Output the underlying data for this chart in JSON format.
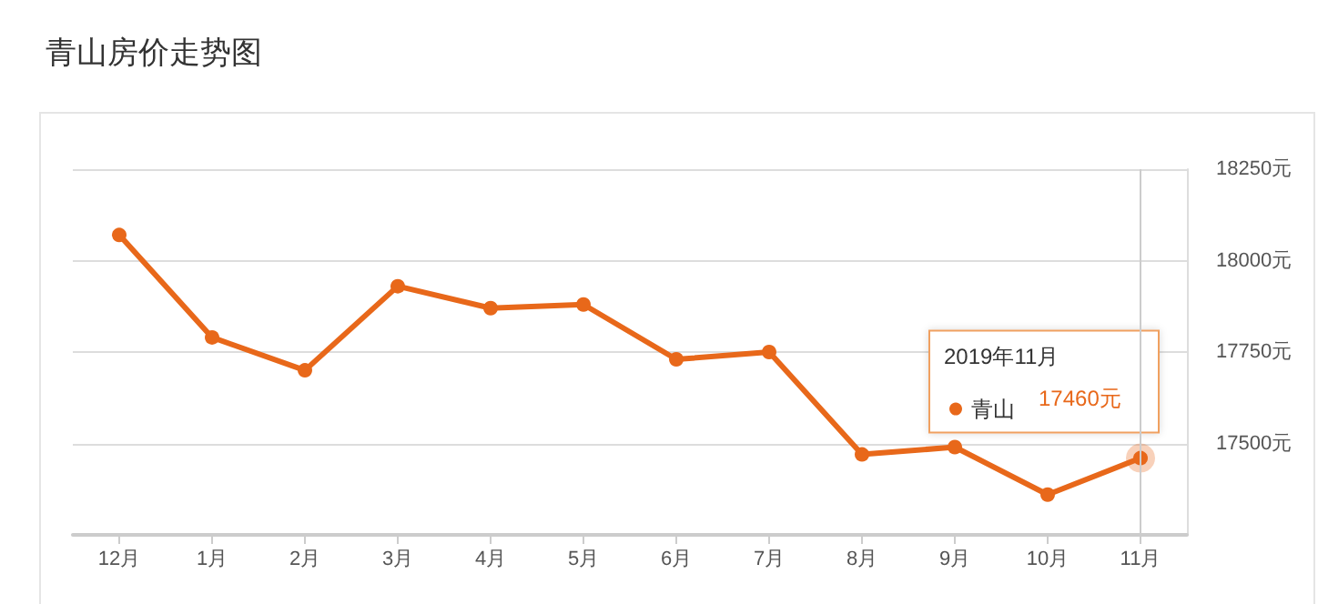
{
  "chart_data": {
    "type": "line",
    "title": "青山房价走势图",
    "categories": [
      "12月",
      "1月",
      "2月",
      "3月",
      "4月",
      "5月",
      "6月",
      "7月",
      "8月",
      "9月",
      "10月",
      "11月"
    ],
    "series": [
      {
        "name": "青山",
        "color": "#e8681a",
        "values": [
          18070,
          17790,
          17700,
          17930,
          17870,
          17880,
          17730,
          17750,
          17470,
          17490,
          17360,
          17460
        ],
        "value_labels": [
          null,
          null,
          null,
          null,
          null,
          null,
          null,
          null,
          null,
          null,
          null,
          "17460元"
        ]
      }
    ],
    "ylim": [
      17250,
      18250
    ],
    "yticks": [
      {
        "value": 17250,
        "label": null
      },
      {
        "value": 17500,
        "label": "17500元"
      },
      {
        "value": 17750,
        "label": "17750元"
      },
      {
        "value": 18000,
        "label": "18000元"
      },
      {
        "value": 18250,
        "label": "18250元"
      }
    ],
    "annotations": [
      "2019年11月"
    ],
    "ref_lines": [
      {
        "axis": "x",
        "value": "11月",
        "color": "#cccccc"
      }
    ],
    "grid": "y",
    "marker": "circle",
    "line_style": "solid",
    "legend": "right"
  }
}
